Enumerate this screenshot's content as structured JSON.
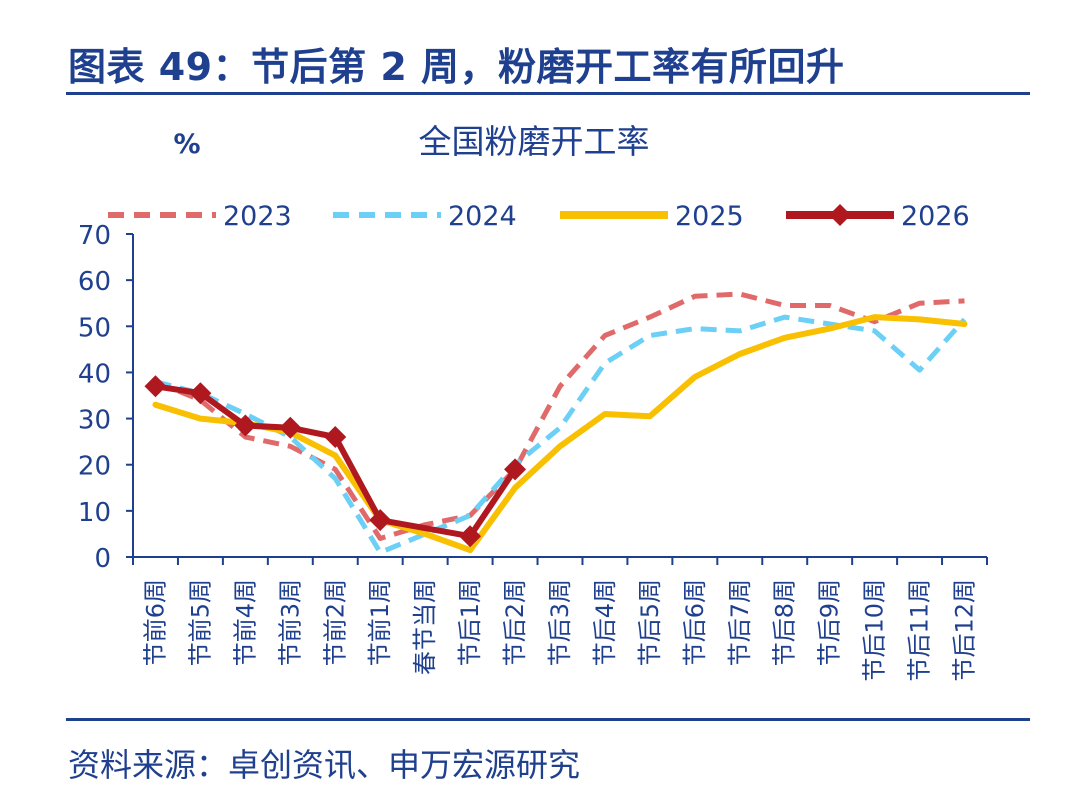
{
  "figure": {
    "title": "图表 49：节后第 2 周，粉磨开工率有所回升",
    "source": "资料来源：卓创资讯、申万宏源研究"
  },
  "chart_data": {
    "type": "line",
    "title": "全国粉磨开工率",
    "ylabel": "%",
    "xlabel": "",
    "ylim": [
      0,
      70
    ],
    "yticks": [
      0,
      10,
      20,
      30,
      40,
      50,
      60,
      70
    ],
    "grid": false,
    "legend_position": "top",
    "categories": [
      "节前6周",
      "节前5周",
      "节前4周",
      "节前3周",
      "节前2周",
      "节前1周",
      "春节当周",
      "节后1周",
      "节后2周",
      "节后3周",
      "节后4周",
      "节后5周",
      "节后6周",
      "节后7周",
      "节后8周",
      "节后9周",
      "节后10周",
      "节后11周",
      "节后12周"
    ],
    "series": [
      {
        "name": "2023",
        "color": "#e06a6a",
        "style": "dashed",
        "marker": "none",
        "values": [
          38,
          34,
          26,
          24,
          19,
          4,
          7,
          9,
          19,
          37,
          48,
          52,
          56.5,
          57,
          54.5,
          54.5,
          51,
          55,
          55.5
        ]
      },
      {
        "name": "2024",
        "color": "#6ccff6",
        "style": "dashed",
        "marker": "none",
        "values": [
          38,
          35.5,
          31,
          26,
          17,
          1,
          5,
          9,
          20,
          28,
          42,
          48,
          49.5,
          49,
          52,
          50.5,
          49,
          40.5,
          51.5
        ]
      },
      {
        "name": "2025",
        "color": "#f8c000",
        "style": "solid",
        "marker": "none",
        "values": [
          33,
          30,
          29,
          27,
          22,
          8,
          5,
          1.5,
          15,
          24,
          31,
          30.5,
          39,
          44,
          47.5,
          49.5,
          52,
          51.5,
          50.5
        ]
      },
      {
        "name": "2026",
        "color": "#b01820",
        "style": "solid",
        "marker": "diamond",
        "values": [
          37,
          35.5,
          28.5,
          28,
          26,
          8,
          null,
          4.5,
          19,
          null,
          null,
          null,
          null,
          null,
          null,
          null,
          null,
          null,
          null
        ]
      }
    ]
  }
}
